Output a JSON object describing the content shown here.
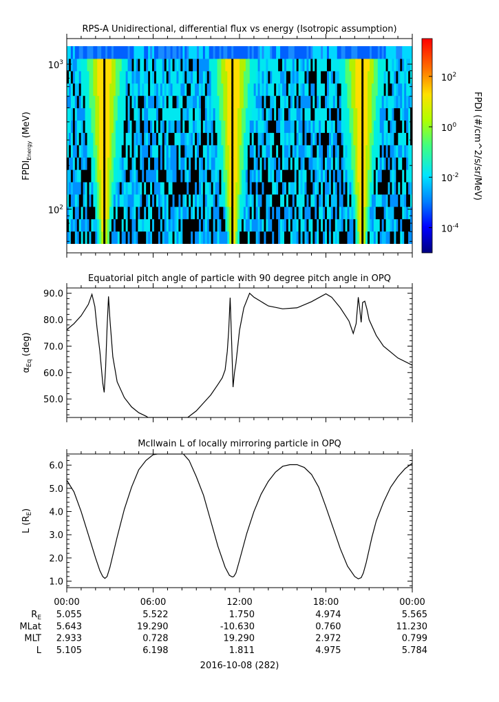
{
  "chart_data": [
    {
      "type": "heatmap",
      "title": "RPS-A Unidirectional, differential flux vs energy (Isotropic assumption)",
      "ylabel_main": "FPDI",
      "ylabel_sub": "Energy",
      "ylabel_unit": " (MeV)",
      "y_scale": "log",
      "ylim": [
        50,
        1500
      ],
      "y_ticks": [
        {
          "value": 100,
          "base": "10",
          "exp": "2"
        },
        {
          "value": 1000,
          "base": "10",
          "exp": "3"
        }
      ],
      "colorbar": {
        "label": "FPDI (#/cm^2/s/sr/MeV)",
        "scale": "log",
        "range_exponent": [
          -5,
          3.5
        ],
        "ticks": [
          {
            "exp_value": 2,
            "base": "10",
            "exp": "2"
          },
          {
            "exp_value": 0,
            "base": "10",
            "exp": "0"
          },
          {
            "exp_value": -2,
            "base": "10",
            "exp": "-2"
          },
          {
            "exp_value": -4,
            "base": "10",
            "exp": "-4"
          }
        ]
      },
      "perigee_hours": [
        2.6,
        11.55,
        20.5
      ]
    },
    {
      "type": "line",
      "title": "Equatorial pitch angle of particle with 90 degree pitch angle in OPQ",
      "ylabel_main": "α",
      "ylabel_sub": "Eq",
      "ylabel_unit": " (deg)",
      "ylim": [
        43,
        92
      ],
      "y_ticks": [
        50,
        60,
        70,
        80,
        90
      ],
      "x_hours": [
        0,
        0.5,
        1,
        1.5,
        1.75,
        1.95,
        2.1,
        2.3,
        2.5,
        2.6,
        2.7,
        2.8,
        2.9,
        3.0,
        3.2,
        3.5,
        4,
        4.5,
        5,
        5.5,
        5.65,
        8.4,
        9,
        9.5,
        10,
        10.5,
        10.8,
        11.0,
        11.15,
        11.25,
        11.35,
        11.45,
        11.55,
        11.65,
        11.75,
        12,
        12.3,
        12.7,
        13.0,
        14,
        15,
        16,
        17,
        18,
        18.4,
        19,
        19.6,
        19.9,
        20.1,
        20.25,
        20.35,
        20.45,
        20.55,
        20.7,
        20.85,
        21,
        21.5,
        22,
        23,
        24
      ],
      "y_values": [
        76.2,
        78.5,
        81.5,
        85.8,
        89.6,
        85,
        77,
        68,
        56,
        52.5,
        62,
        77,
        88.8,
        80,
        66,
        56.5,
        50.5,
        47,
        44.8,
        43.5,
        43,
        43,
        45.5,
        48.5,
        51.5,
        55.5,
        58,
        61,
        68,
        76,
        88.3,
        72,
        54.5,
        60,
        63.5,
        76,
        84.5,
        90,
        88.5,
        85.2,
        84.1,
        84.5,
        86.8,
        89.8,
        88.5,
        84.5,
        79.5,
        74.8,
        78.5,
        88.5,
        84,
        79,
        86.5,
        87,
        84,
        80,
        74,
        70,
        65.5,
        62.8
      ]
    },
    {
      "type": "line",
      "title": "McIlwain L of locally mirroring particle in OPQ",
      "ylabel_main": "L (R",
      "ylabel_sub": "E",
      "ylabel_unit": ")",
      "ylim": [
        0.72,
        6.48
      ],
      "y_ticks": [
        1,
        2,
        3,
        4,
        5,
        6
      ],
      "x_hours": [
        0,
        0.5,
        1,
        1.5,
        2,
        2.3,
        2.5,
        2.65,
        2.8,
        3.0,
        3.5,
        4,
        4.5,
        5,
        5.5,
        6,
        6.3,
        8.1,
        8.5,
        9,
        9.5,
        10,
        10.5,
        11,
        11.3,
        11.5,
        11.6,
        11.75,
        12,
        12.5,
        13,
        13.5,
        14,
        14.5,
        15,
        15.5,
        16,
        16.5,
        17,
        17.5,
        18,
        18.5,
        19,
        19.5,
        20,
        20.25,
        20.45,
        20.6,
        20.8,
        21.2,
        21.5,
        22,
        22.5,
        23,
        23.5,
        24
      ],
      "y_values": [
        5.35,
        4.85,
        4.0,
        3.0,
        2.0,
        1.45,
        1.2,
        1.12,
        1.2,
        1.6,
        2.9,
        4.1,
        5.05,
        5.8,
        6.2,
        6.45,
        6.48,
        6.48,
        6.2,
        5.5,
        4.7,
        3.6,
        2.5,
        1.6,
        1.25,
        1.18,
        1.2,
        1.35,
        1.9,
        3.05,
        4.0,
        4.75,
        5.3,
        5.7,
        5.95,
        6.02,
        6.02,
        5.9,
        5.6,
        5.05,
        4.2,
        3.3,
        2.4,
        1.65,
        1.2,
        1.1,
        1.15,
        1.35,
        1.8,
        2.9,
        3.6,
        4.4,
        5.05,
        5.5,
        5.85,
        6.08
      ]
    }
  ],
  "x_axis": {
    "tick_labels": [
      "00:00",
      "06:00",
      "12:00",
      "18:00",
      "00:00"
    ],
    "date_label": "2016-10-08 (282)"
  },
  "ephemeris": {
    "rows": [
      {
        "label_main": "R",
        "label_sub": "E",
        "values": [
          "5.055",
          "5.522",
          "1.750",
          "4.974",
          "5.565"
        ]
      },
      {
        "label_main": "MLat",
        "label_sub": "",
        "values": [
          "5.643",
          "19.290",
          "-10.630",
          "0.760",
          "11.230"
        ]
      },
      {
        "label_main": "MLT",
        "label_sub": "",
        "values": [
          "2.933",
          "0.728",
          "19.290",
          "2.972",
          "0.799"
        ]
      },
      {
        "label_main": "L",
        "label_sub": "",
        "values": [
          "5.105",
          "6.198",
          "1.811",
          "4.975",
          "5.784"
        ]
      }
    ]
  }
}
